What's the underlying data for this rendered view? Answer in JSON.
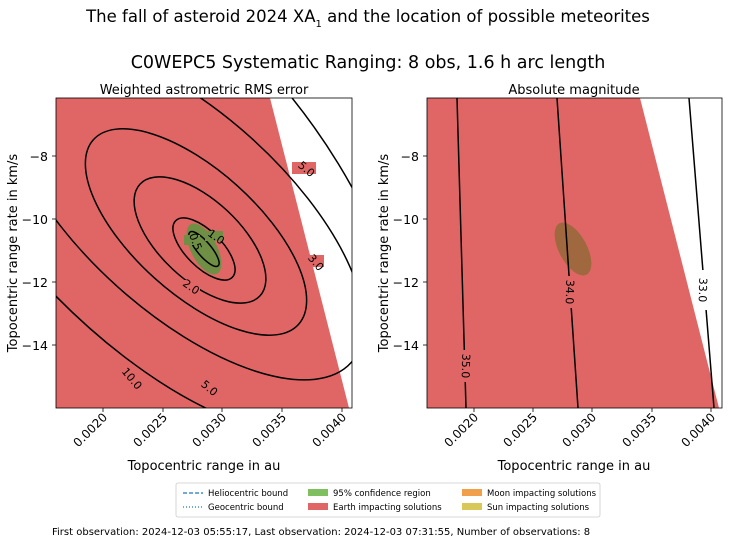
{
  "header": {
    "title_main": "The fall of asteroid 2024 XA",
    "title_sub": "1",
    "title_end": " and the location of possible meteorites",
    "suptitle": "C0WEPC5 Systematic Ranging: 8 obs, 1.6 h arc length"
  },
  "footer": {
    "observation_info": "First observation: 2024-12-03 05:55:17, Last observation: 2024-12-03 07:31:55, Number of observations: 8"
  },
  "legend": {
    "items": [
      {
        "label": "Heliocentric bound",
        "kind": "dashed",
        "color": "#1f77b4"
      },
      {
        "label": "Geocentric bound",
        "kind": "dotted",
        "color": "#1f77b4"
      },
      {
        "label": "95% confidence region",
        "kind": "patch",
        "color": "#7fbf5f"
      },
      {
        "label": "Earth impacting solutions",
        "kind": "patch",
        "color": "#e06666"
      },
      {
        "label": "Moon impacting solutions",
        "kind": "patch",
        "color": "#f0a04b"
      },
      {
        "label": "Sun impacting solutions",
        "kind": "patch",
        "color": "#d8c85a"
      }
    ]
  },
  "colors": {
    "earth_region": "#e06666",
    "confidence_left": "#6f8f45",
    "confidence_right": "#a0683e",
    "contour": "#000000"
  },
  "chart_data": [
    {
      "type": "contour",
      "title": "Weighted astrometric RMS error",
      "xlabel": "Topocentric range in au",
      "ylabel": "Topocentric range rate in km/s",
      "xlim": [
        0.00155,
        0.00405
      ],
      "ylim": [
        -16.0,
        -6.2
      ],
      "xticks": [
        0.002,
        0.0025,
        0.003,
        0.0035,
        0.004
      ],
      "xtick_labels": [
        "0.0020",
        "0.0025",
        "0.0030",
        "0.0035",
        "0.0040"
      ],
      "yticks": [
        -8,
        -10,
        -12,
        -14
      ],
      "ytick_labels": [
        "−8",
        "−10",
        "−12",
        "−14"
      ],
      "contour_levels": [
        "0.5",
        "1.0",
        "2.0",
        "3.0",
        "5.0",
        "10.0"
      ],
      "confidence_ellipse": {
        "center": [
          0.00277,
          -11.0
        ],
        "range_x": [
          0.00265,
          0.00289
        ],
        "range_y": [
          -12.9,
          -10.1
        ]
      },
      "earth_region_boundary": [
        [
          0.00155,
          -6.2
        ],
        [
          0.0033,
          -6.2
        ],
        [
          0.00405,
          -16.0
        ],
        [
          0.00155,
          -16.0
        ]
      ]
    },
    {
      "type": "contour",
      "title": "Absolute magnitude",
      "xlabel": "Topocentric range in au",
      "ylabel": "Topocentric range rate in km/s",
      "xlim": [
        0.00155,
        0.00405
      ],
      "ylim": [
        -16.0,
        -6.2
      ],
      "xticks": [
        0.002,
        0.0025,
        0.003,
        0.0035,
        0.004
      ],
      "xtick_labels": [
        "0.0020",
        "0.0025",
        "0.0030",
        "0.0035",
        "0.0040"
      ],
      "yticks": [
        -8,
        -10,
        -12,
        -14
      ],
      "ytick_labels": [
        "−8",
        "−10",
        "−12",
        "−14"
      ],
      "contour_levels": [
        "35.0",
        "34.0",
        "33.0"
      ],
      "confidence_ellipse": {
        "center": [
          0.00277,
          -11.0
        ],
        "range_x": [
          0.00265,
          0.00289
        ],
        "range_y": [
          -12.9,
          -10.1
        ]
      },
      "earth_region_boundary": [
        [
          0.00155,
          -6.2
        ],
        [
          0.0033,
          -6.2
        ],
        [
          0.00405,
          -16.0
        ],
        [
          0.00155,
          -16.0
        ]
      ]
    }
  ]
}
